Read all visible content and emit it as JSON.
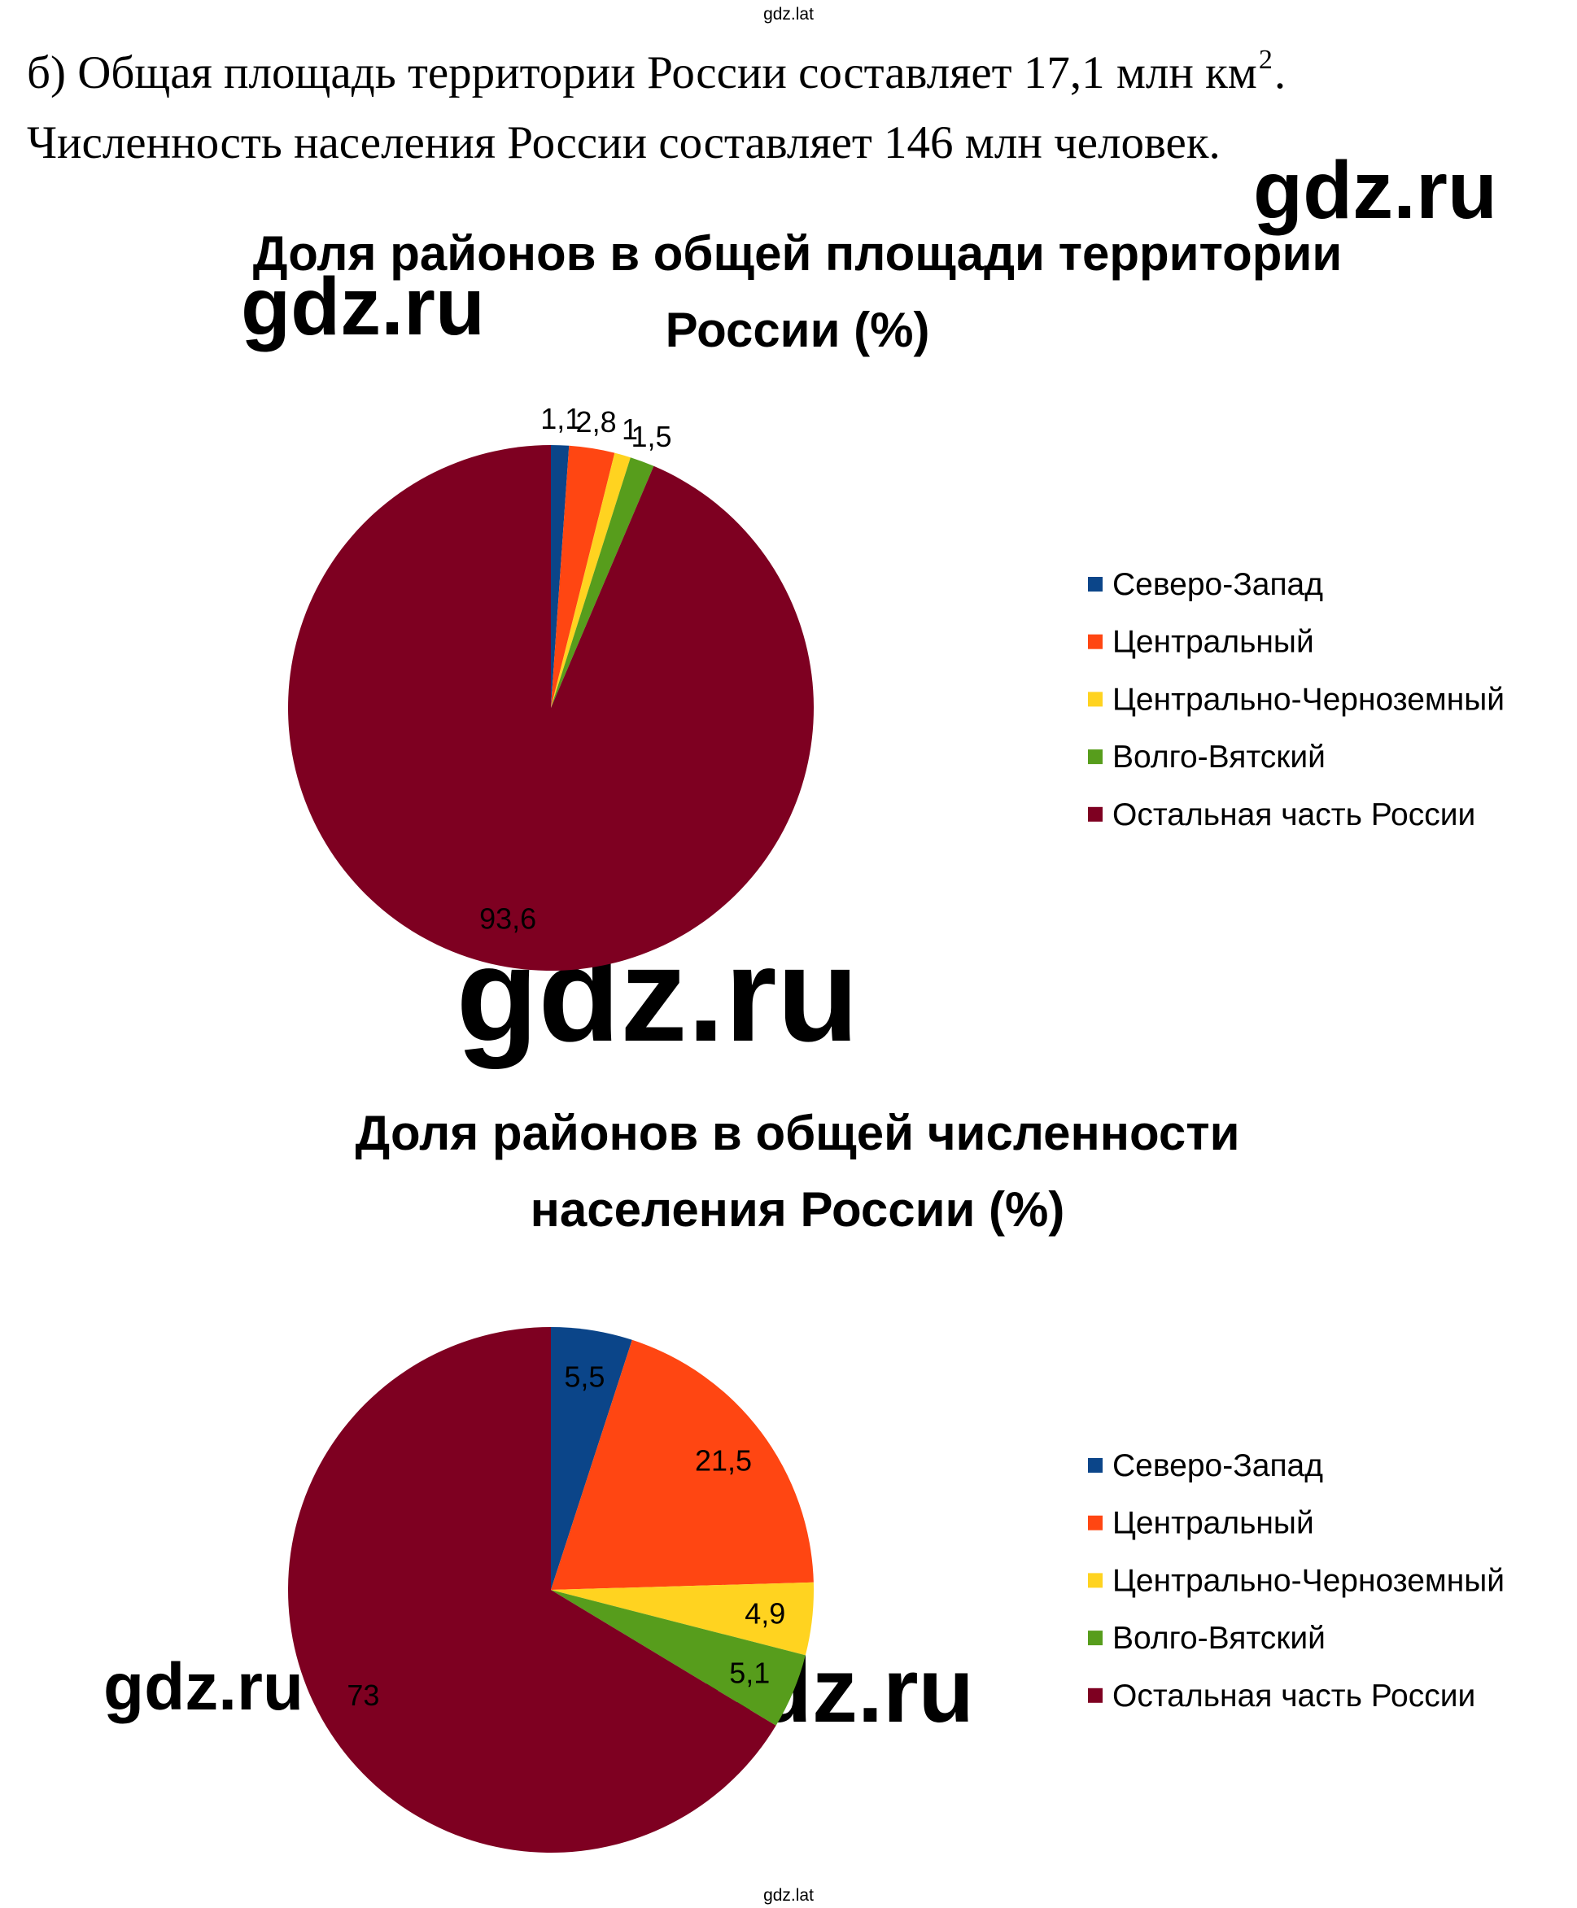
{
  "header": "gdz.lat",
  "text": {
    "line1": "б) Общая площадь территории России составляет 17,1 млн км",
    "line1_sup": "2",
    "line1_end": ".",
    "line2": "Численность населения России составляет 146 млн человек."
  },
  "watermarks": [
    "gdz.ru",
    "gdz.ru",
    "gdz.ru",
    "gdz.ru",
    "gdz.ru"
  ],
  "footer": "gdz.lat",
  "chart_data": [
    {
      "type": "pie",
      "title": [
        "Доля районов в общей площади территории",
        "России (%)"
      ],
      "categories": [
        "Северо-Запад",
        "Центральный",
        "Центрально-Черноземный",
        "Волго-Вятский",
        "Остальная часть России"
      ],
      "values": [
        1.1,
        2.8,
        1,
        1.5,
        93.6
      ],
      "value_labels": [
        "1,1",
        "2,8",
        "1",
        "1,5",
        "93,6"
      ],
      "colors": [
        "#0b4589",
        "#ff4612",
        "#ffd320",
        "#579d1c",
        "#7e0021"
      ],
      "legend": "right"
    },
    {
      "type": "pie",
      "title": [
        "Доля районов в общей численности",
        "населения России (%)"
      ],
      "categories": [
        "Северо-Запад",
        "Центральный",
        "Центрально-Черноземный",
        "Волго-Вятский",
        "Остальная часть России"
      ],
      "values": [
        5.5,
        21.5,
        4.9,
        5.1,
        73
      ],
      "value_labels": [
        "5,5",
        "21,5",
        "4,9",
        "5,1",
        "73"
      ],
      "colors": [
        "#0b4589",
        "#ff4612",
        "#ffd320",
        "#579d1c",
        "#7e0021"
      ],
      "legend": "right"
    }
  ]
}
